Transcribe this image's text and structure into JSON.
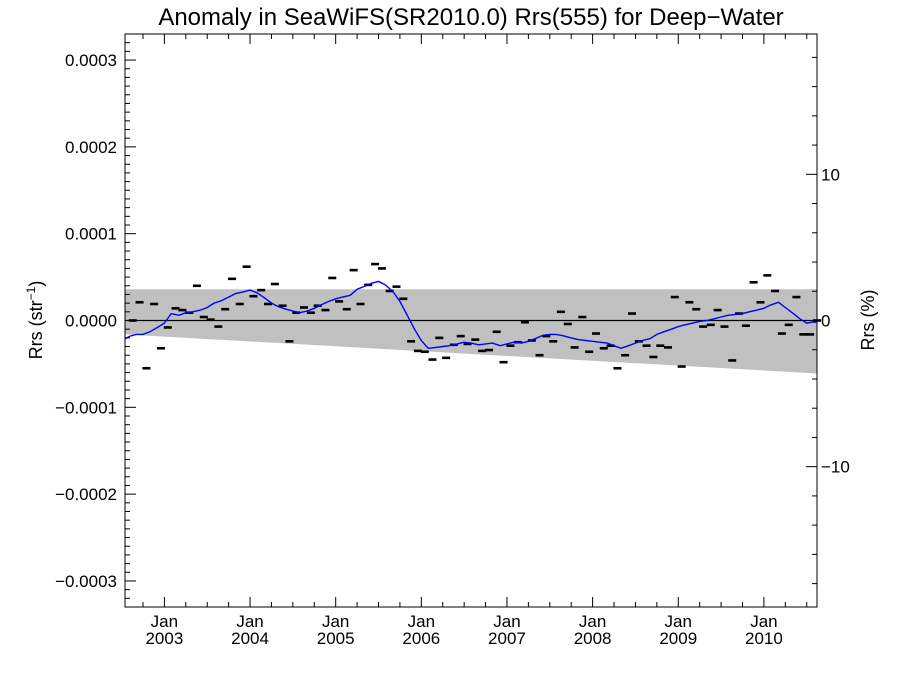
{
  "chart_data": {
    "type": "scatter",
    "title": "Anomaly in SeaWiFS(SR2010.0) Rrs(555) for Deep−Water",
    "ylabel_left": "Rrs (str",
    "ylabel_left_sup": "−1",
    "ylabel_left_close": ")",
    "ylabel_right": "Rrs (%)",
    "xlim": [
      2002.54,
      2010.62
    ],
    "ylim": [
      -0.00033,
      0.00033
    ],
    "y2lim": [
      -19.6,
      19.6
    ],
    "grid": false,
    "x_ticks": [
      {
        "value": 2003.0,
        "top": "Jan",
        "bottom": "2003"
      },
      {
        "value": 2004.0,
        "top": "Jan",
        "bottom": "2004"
      },
      {
        "value": 2005.0,
        "top": "Jan",
        "bottom": "2005"
      },
      {
        "value": 2006.0,
        "top": "Jan",
        "bottom": "2006"
      },
      {
        "value": 2007.0,
        "top": "Jan",
        "bottom": "2007"
      },
      {
        "value": 2008.0,
        "top": "Jan",
        "bottom": "2008"
      },
      {
        "value": 2009.0,
        "top": "Jan",
        "bottom": "2009"
      },
      {
        "value": 2010.0,
        "top": "Jan",
        "bottom": "2010"
      }
    ],
    "y_ticks_left": [
      {
        "value": 0.0003,
        "label": "0.0003"
      },
      {
        "value": 0.0002,
        "label": "0.0002"
      },
      {
        "value": 0.0001,
        "label": "0.0001"
      },
      {
        "value": 0.0,
        "label": "0.0000"
      },
      {
        "value": -0.0001,
        "label": "−0.0001"
      },
      {
        "value": -0.0002,
        "label": "−0.0002"
      },
      {
        "value": -0.0003,
        "label": "−0.0003"
      }
    ],
    "y_ticks_right": [
      {
        "value": 10,
        "label": "10"
      },
      {
        "value": 0,
        "label": "0"
      },
      {
        "value": -10,
        "label": "−10"
      }
    ],
    "band": {
      "color": "#c0c0c0",
      "upper": [
        [
          2002.54,
          3.6e-05
        ],
        [
          2010.62,
          3.6e-05
        ]
      ],
      "lower": [
        [
          2002.54,
          -1.6e-05
        ],
        [
          2010.62,
          -6.1e-05
        ]
      ]
    },
    "zero_line": 0,
    "series": [
      {
        "kind": "markers",
        "color": "#000000",
        "x": [
          2002.63,
          2002.71,
          2002.79,
          2002.88,
          2002.96,
          2003.04,
          2003.13,
          2003.21,
          2003.29,
          2003.38,
          2003.46,
          2003.54,
          2003.63,
          2003.71,
          2003.79,
          2003.88,
          2003.96,
          2004.04,
          2004.13,
          2004.21,
          2004.29,
          2004.38,
          2004.46,
          2004.54,
          2004.63,
          2004.71,
          2004.79,
          2004.88,
          2004.96,
          2005.04,
          2005.13,
          2005.21,
          2005.29,
          2005.38,
          2005.46,
          2005.54,
          2005.63,
          2005.71,
          2005.79,
          2005.88,
          2005.96,
          2006.04,
          2006.13,
          2006.21,
          2006.29,
          2006.38,
          2006.46,
          2006.54,
          2006.63,
          2006.71,
          2006.79,
          2006.88,
          2006.96,
          2007.04,
          2007.13,
          2007.21,
          2007.29,
          2007.38,
          2007.46,
          2007.54,
          2007.63,
          2007.71,
          2007.79,
          2007.88,
          2007.96,
          2008.04,
          2008.13,
          2008.21,
          2008.29,
          2008.38,
          2008.46,
          2008.54,
          2008.63,
          2008.71,
          2008.79,
          2008.88,
          2008.96,
          2009.04,
          2009.13,
          2009.21,
          2009.29,
          2009.38,
          2009.46,
          2009.54,
          2009.63,
          2009.71,
          2009.79,
          2009.88,
          2009.96,
          2010.04,
          2010.13,
          2010.21,
          2010.29,
          2010.38,
          2010.46,
          2010.54,
          2010.62
        ],
        "y": [
          0.0,
          2.1e-05,
          -5.5e-05,
          1.9e-05,
          -3.2e-05,
          -8e-06,
          1.4e-05,
          1.2e-05,
          9e-06,
          4e-05,
          4e-06,
          1e-06,
          -7e-06,
          1.3e-05,
          4.8e-05,
          1.9e-05,
          6.2e-05,
          2.8e-05,
          3.5e-05,
          1.9e-05,
          4.2e-05,
          1.7e-05,
          -2.4e-05,
          9e-06,
          1.5e-05,
          9e-06,
          1.7e-05,
          1.2e-05,
          4.9e-05,
          2.2e-05,
          1.3e-05,
          5.8e-05,
          1.9e-05,
          4.1e-05,
          6.5e-05,
          6e-05,
          3.4e-05,
          3.9e-05,
          2.5e-05,
          -2.4e-05,
          -3.5e-05,
          -3.6e-05,
          -4.5e-05,
          -2e-05,
          -4.3e-05,
          -2.8e-05,
          -1.8e-05,
          -2.7e-05,
          -2.2e-05,
          -3.5e-05,
          -3.4e-05,
          -1.3e-05,
          -4.8e-05,
          -2.9e-05,
          -2.5e-05,
          -2e-06,
          -2.3e-05,
          -4e-05,
          -1.8e-05,
          -2.4e-05,
          1e-05,
          -4e-06,
          -3.1e-05,
          4e-06,
          -3.6e-05,
          -1.5e-05,
          -3.2e-05,
          -2.9e-05,
          -5.5e-05,
          -4e-05,
          8e-06,
          -2.4e-05,
          -2.9e-05,
          -4.2e-05,
          -2.9e-05,
          -3.1e-05,
          2.7e-05,
          -5.3e-05,
          2.1e-05,
          1.3e-05,
          -7e-06,
          -5e-06,
          1.2e-05,
          -7e-06,
          -4.6e-05,
          8e-06,
          -6e-06,
          4.4e-05,
          2.1e-05,
          5.2e-05,
          3.4e-05,
          -1.5e-05,
          -5e-06,
          2.7e-05,
          -1.6e-05,
          -1.6e-05,
          0.0
        ]
      },
      {
        "kind": "line",
        "color": "#0000ff",
        "x": [
          2002.54,
          2002.6,
          2002.67,
          2002.75,
          2002.83,
          2002.92,
          2003.0,
          2003.08,
          2003.17,
          2003.25,
          2003.33,
          2003.42,
          2003.5,
          2003.58,
          2003.67,
          2003.75,
          2003.83,
          2003.92,
          2004.0,
          2004.08,
          2004.17,
          2004.25,
          2004.33,
          2004.42,
          2004.5,
          2004.58,
          2004.67,
          2004.75,
          2004.83,
          2004.92,
          2005.0,
          2005.08,
          2005.17,
          2005.25,
          2005.33,
          2005.42,
          2005.5,
          2005.58,
          2005.67,
          2005.75,
          2005.83,
          2005.92,
          2006.0,
          2006.08,
          2006.17,
          2006.25,
          2006.33,
          2006.42,
          2006.5,
          2006.58,
          2006.67,
          2006.75,
          2006.83,
          2006.92,
          2007.0,
          2007.08,
          2007.17,
          2007.25,
          2007.33,
          2007.42,
          2007.5,
          2007.58,
          2007.67,
          2007.75,
          2007.83,
          2007.92,
          2008.0,
          2008.08,
          2008.17,
          2008.25,
          2008.33,
          2008.42,
          2008.5,
          2008.58,
          2008.67,
          2008.75,
          2008.83,
          2008.92,
          2009.0,
          2009.08,
          2009.17,
          2009.25,
          2009.33,
          2009.42,
          2009.5,
          2009.58,
          2009.67,
          2009.75,
          2009.83,
          2009.92,
          2010.0,
          2010.08,
          2010.17,
          2010.25,
          2010.33,
          2010.42,
          2010.5,
          2010.56,
          2010.62
        ],
        "y": [
          -2.1e-05,
          -1.8e-05,
          -1.6e-05,
          -1.6e-05,
          -1.3e-05,
          -8e-06,
          -3e-06,
          8e-06,
          6e-06,
          9e-06,
          1e-05,
          1.2e-05,
          1.5e-05,
          2e-05,
          2.3e-05,
          2.7e-05,
          3.1e-05,
          3.3e-05,
          3.5e-05,
          3.2e-05,
          2.6e-05,
          2e-05,
          1.6e-05,
          1.3e-05,
          1.1e-05,
          9e-06,
          1.1e-05,
          1.4e-05,
          1.8e-05,
          2.2e-05,
          2.5e-05,
          2.7e-05,
          2.9e-05,
          3.6e-05,
          3.9e-05,
          4.3e-05,
          4.5e-05,
          4.1e-05,
          3.3e-05,
          2.2e-05,
          7e-06,
          -1e-05,
          -2.3e-05,
          -3.2e-05,
          -3.1e-05,
          -3e-05,
          -2.9e-05,
          -2.7e-05,
          -2.5e-05,
          -2.6e-05,
          -2.8e-05,
          -2.7e-05,
          -2.6e-05,
          -2.9e-05,
          -2.7e-05,
          -2.5e-05,
          -2.6e-05,
          -2.4e-05,
          -2.1e-05,
          -1.7e-05,
          -1.6e-05,
          -1.6e-05,
          -1.8e-05,
          -2e-05,
          -2.2e-05,
          -2.3e-05,
          -2.4e-05,
          -2.5e-05,
          -2.6e-05,
          -2.9e-05,
          -3.2e-05,
          -2.9e-05,
          -2.6e-05,
          -2.3e-05,
          -2.1e-05,
          -1.6e-05,
          -1.3e-05,
          -1e-05,
          -7e-06,
          -5e-06,
          -3e-06,
          -1e-06,
          0.0,
          2e-06,
          4e-06,
          6e-06,
          7e-06,
          8e-06,
          1e-05,
          1.2e-05,
          1.4e-05,
          1.8e-05,
          2.1e-05,
          1.5e-05,
          9e-06,
          2e-06,
          -3e-06,
          -2e-06,
          -2e-06
        ]
      }
    ]
  }
}
